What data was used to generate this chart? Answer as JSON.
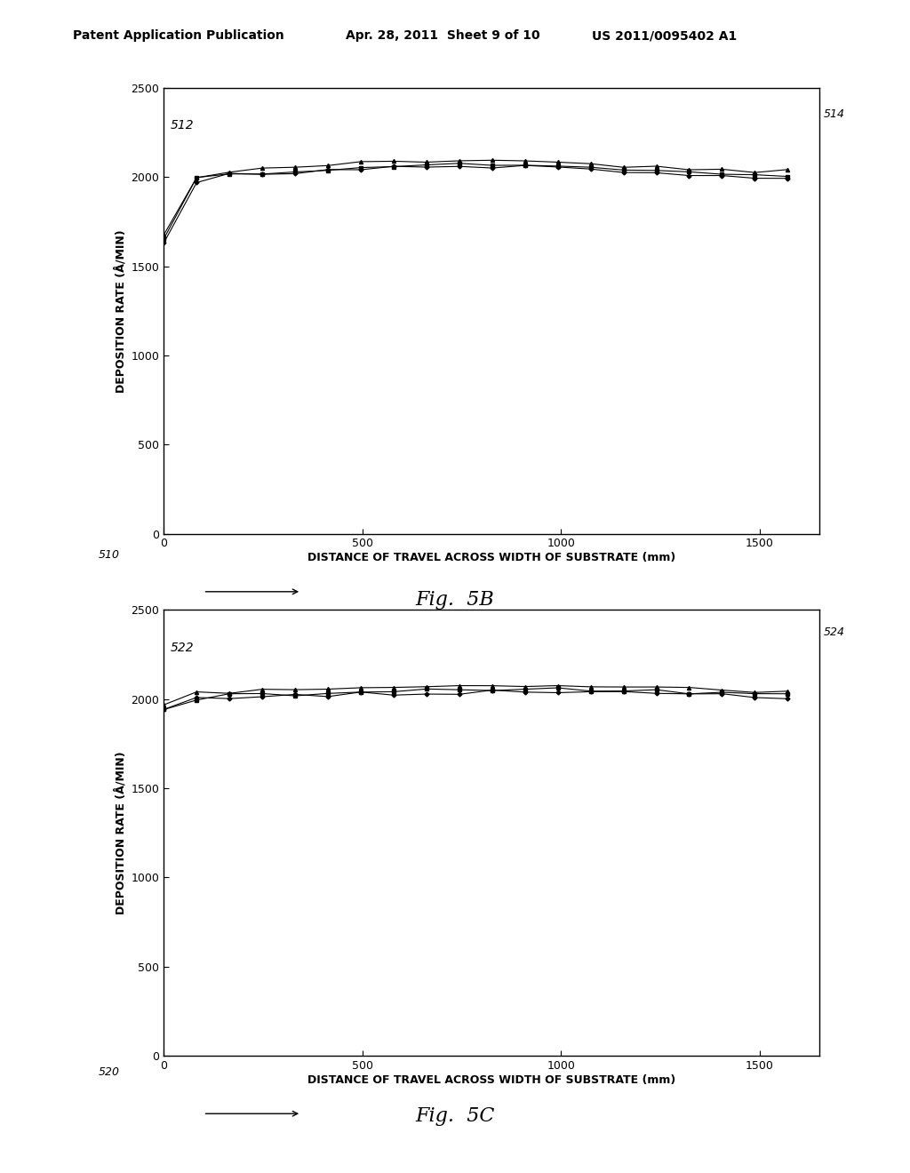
{
  "header_left": "Patent Application Publication",
  "header_mid": "Apr. 28, 2011  Sheet 9 of 10",
  "header_right": "US 2011/0095402 A1",
  "fig5b_label": "Fig.  5B",
  "fig5c_label": "Fig.  5C",
  "ylabel": "DEPOSITION RATE (Å/MIN)",
  "xlabel": "DISTANCE OF TRAVEL ACROSS WIDTH OF SUBSTRATE (mm)",
  "ylim": [
    0,
    2500
  ],
  "xlim": [
    0,
    1650
  ],
  "yticks": [
    0,
    500,
    1000,
    1500,
    2000,
    2500
  ],
  "xticks": [
    0,
    500,
    1000,
    1500
  ],
  "ref_5b_topleft": "512",
  "ref_5b_bottomright": "514",
  "ref_5b_fignum": "510",
  "ref_5c_topleft": "522",
  "ref_5c_bottomright": "524",
  "ref_5c_fignum": "520",
  "line_color": "#000000",
  "background_color": "#ffffff"
}
